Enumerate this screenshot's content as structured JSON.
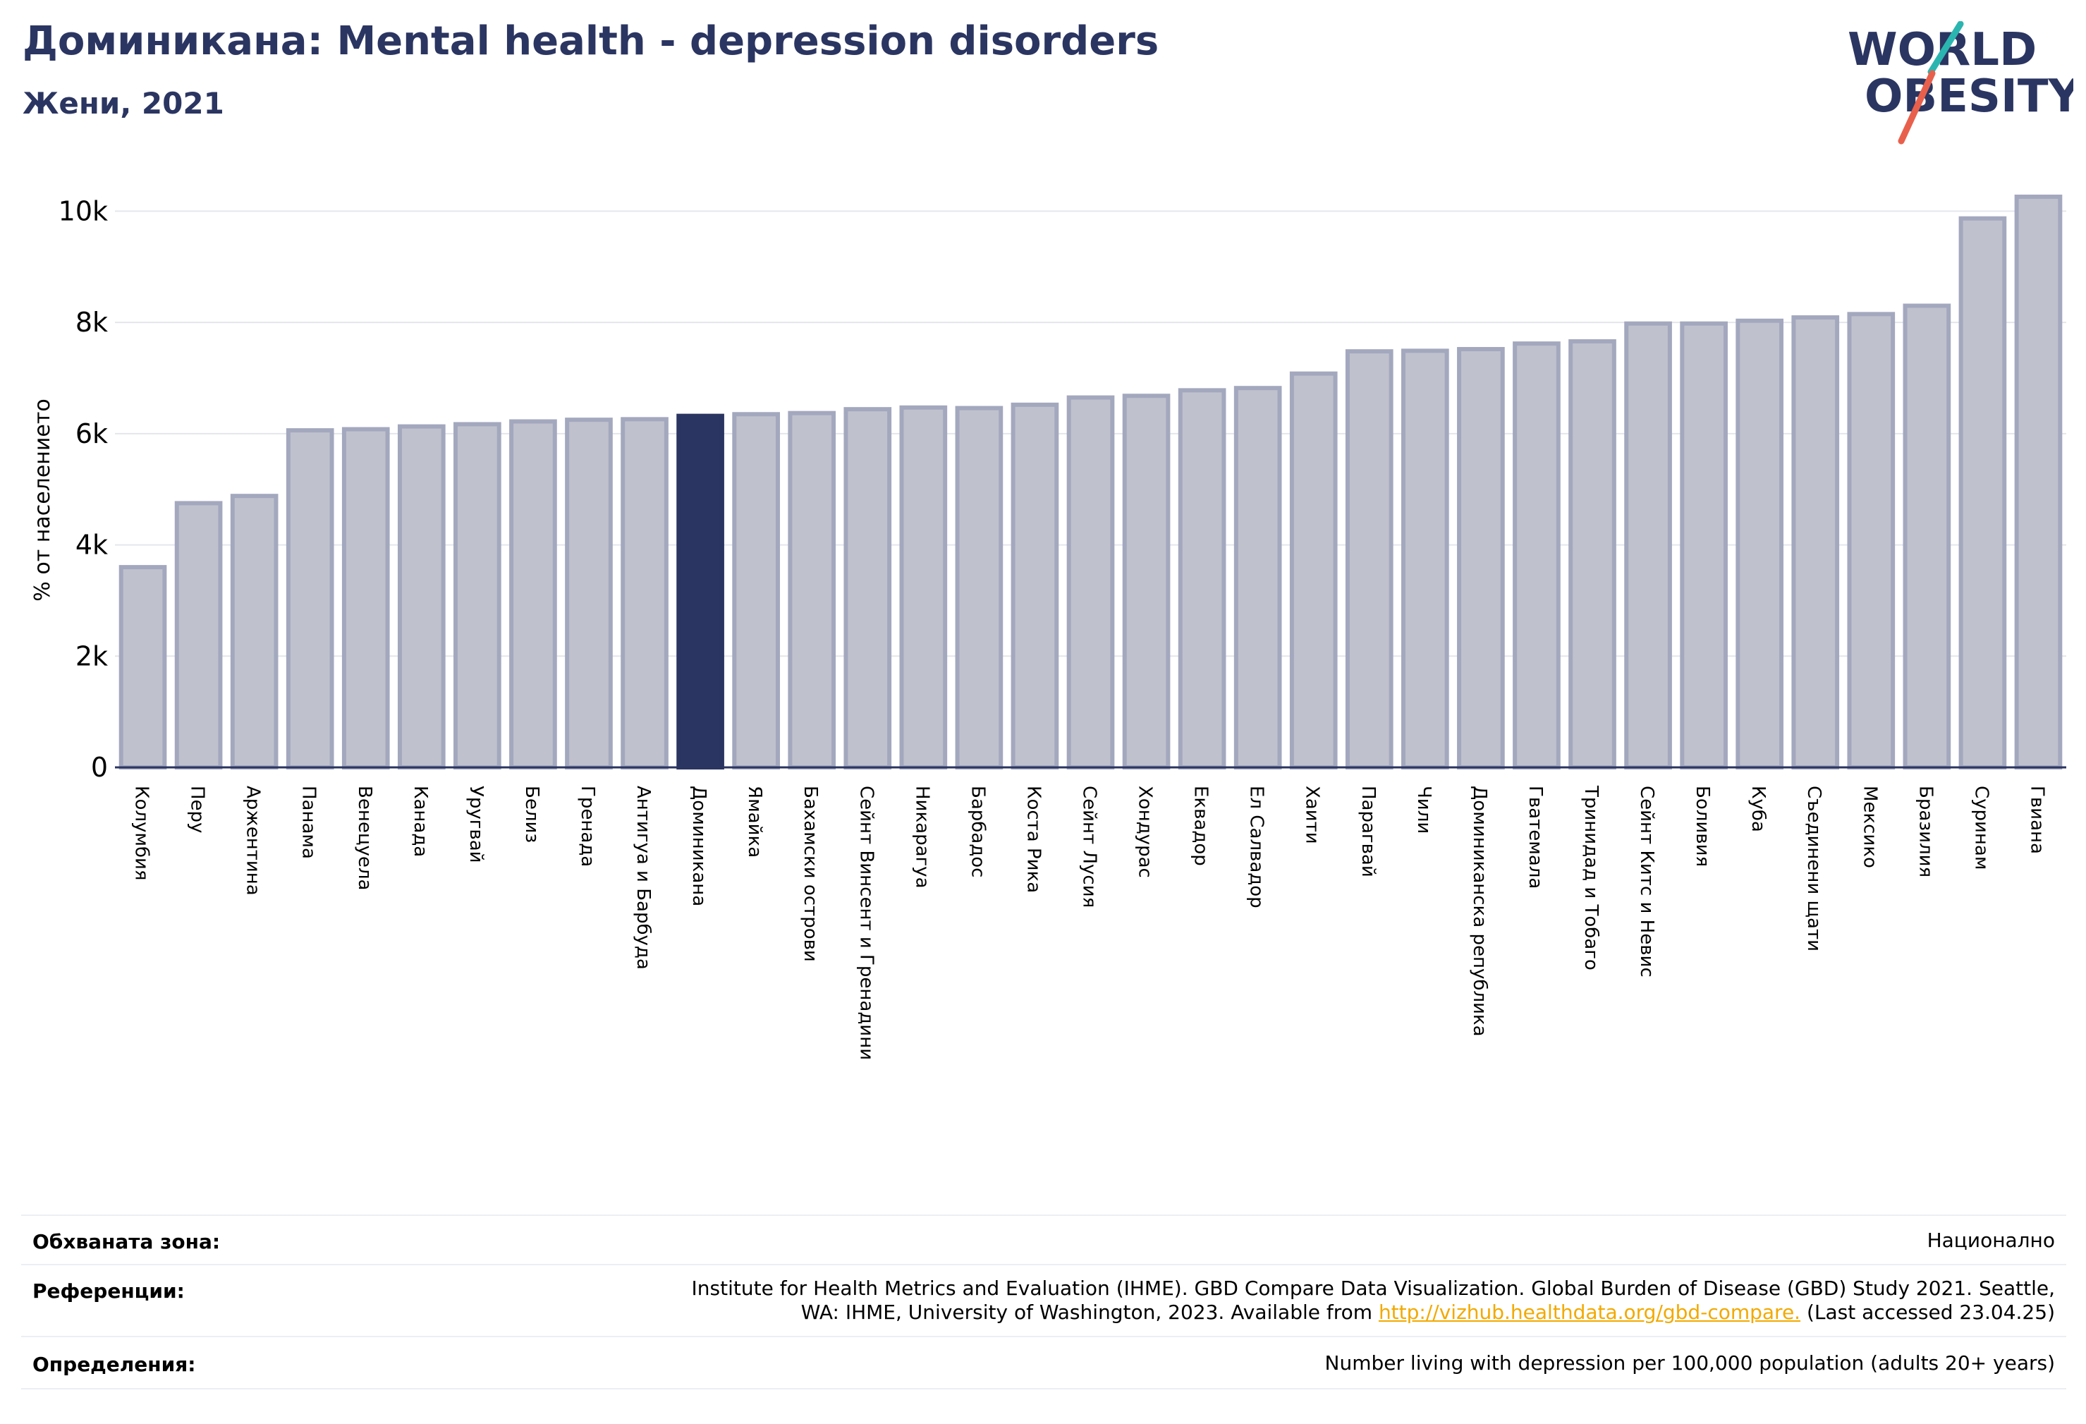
{
  "header": {
    "title": "Доминикана: Mental health - depression disorders",
    "subtitle": "Жени, 2021"
  },
  "logo": {
    "line1": "WORLD",
    "line2": "OBESITY"
  },
  "colors": {
    "primary": "#2b3561",
    "bar": "#bfc1cd",
    "bar_edge": "#a3a8be",
    "accent_teal": "#2bb5b0",
    "accent_red": "#e8604c",
    "link": "#f2a900"
  },
  "chart_data": {
    "type": "bar",
    "ylabel": "% от населението",
    "ylim": [
      0,
      10500
    ],
    "yticks": [
      0,
      2000,
      4000,
      6000,
      8000,
      10000
    ],
    "ytick_labels": [
      "0",
      "2k",
      "4k",
      "6k",
      "8k",
      "10k"
    ],
    "highlight": "Доминикана",
    "categories": [
      "Колумбия",
      "Перу",
      "Аржентина",
      "Панама",
      "Венецуела",
      "Канада",
      "Уругвай",
      "Белиз",
      "Гренада",
      "Антигуа и Барбуда",
      "Доминикана",
      "Ямайка",
      "Бахамски острови",
      "Сейнт Винсент и Гренадини",
      "Никарагуа",
      "Барбадос",
      "Коста Рика",
      "Сейнт Лусия",
      "Хондурас",
      "Еквадор",
      "Ел Салвадор",
      "Хаити",
      "Парагвай",
      "Чили",
      "Доминиканска република",
      "Гватемала",
      "Тринидад и Тобаго",
      "Сейнт Китс и Невис",
      "Боливия",
      "Куба",
      "Съединени щати",
      "Мексико",
      "Бразилия",
      "Суринам",
      "Гвиана"
    ],
    "values": [
      3600,
      4750,
      4880,
      6060,
      6080,
      6130,
      6170,
      6220,
      6250,
      6260,
      6320,
      6350,
      6370,
      6440,
      6470,
      6460,
      6520,
      6650,
      6680,
      6780,
      6820,
      7080,
      7480,
      7490,
      7520,
      7620,
      7660,
      7980,
      7980,
      8030,
      8090,
      8150,
      8300,
      9870,
      10260
    ]
  },
  "info": {
    "coverage_label": "Обхваната зона:",
    "coverage_value": "Национално",
    "references_label": "Референции:",
    "references_line1": "Institute for Health Metrics and Evaluation (IHME). GBD Compare Data Visualization. Global Burden of Disease (GBD) Study 2021. Seattle,",
    "references_line2_pre": "WA: IHME, University of Washington, 2023. Available from ",
    "references_link": "http://vizhub.healthdata.org/gbd-compare.",
    "references_line2_post": " (Last accessed 23.04.25)",
    "definitions_label": "Определения:",
    "definitions_value": "Number living with depression per 100,000 population (adults 20+ years)"
  }
}
